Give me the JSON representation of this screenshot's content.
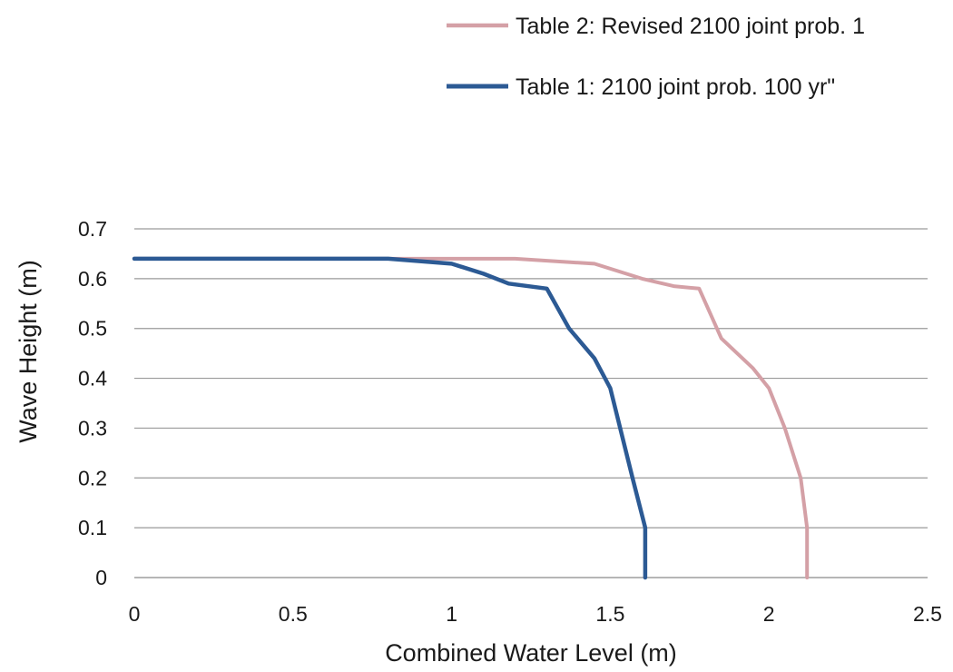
{
  "chart_data": {
    "type": "line",
    "title": "",
    "xlabel": "Combined Water Level (m)",
    "ylabel": "Wave Height (m)",
    "xlim": [
      0,
      2.5
    ],
    "ylim": [
      0,
      0.7
    ],
    "x_ticks": [
      "0",
      "0.5",
      "1",
      "1.5",
      "2",
      "2.5"
    ],
    "y_ticks": [
      "0",
      "0.1",
      "0.2",
      "0.3",
      "0.4",
      "0.5",
      "0.6",
      "0.7"
    ],
    "grid": "horizontal",
    "legend_position": "top-right",
    "series": [
      {
        "name": "Table 2: Revised 2100 joint prob. 1",
        "color": "#d4a0a6",
        "points": [
          [
            0,
            0.64
          ],
          [
            1.0,
            0.64
          ],
          [
            1.2,
            0.64
          ],
          [
            1.45,
            0.63
          ],
          [
            1.6,
            0.6
          ],
          [
            1.7,
            0.585
          ],
          [
            1.78,
            0.58
          ],
          [
            1.85,
            0.48
          ],
          [
            1.95,
            0.42
          ],
          [
            2.0,
            0.38
          ],
          [
            2.05,
            0.3
          ],
          [
            2.1,
            0.2
          ],
          [
            2.12,
            0.1
          ],
          [
            2.12,
            0
          ]
        ]
      },
      {
        "name": "Table 1: 2100 joint prob. 100 yr\"",
        "color": "#2c5a94",
        "points": [
          [
            0,
            0.64
          ],
          [
            0.8,
            0.64
          ],
          [
            1.0,
            0.63
          ],
          [
            1.1,
            0.61
          ],
          [
            1.18,
            0.59
          ],
          [
            1.3,
            0.58
          ],
          [
            1.37,
            0.5
          ],
          [
            1.45,
            0.44
          ],
          [
            1.5,
            0.38
          ],
          [
            1.57,
            0.2
          ],
          [
            1.61,
            0.1
          ],
          [
            1.61,
            0
          ]
        ]
      }
    ]
  }
}
